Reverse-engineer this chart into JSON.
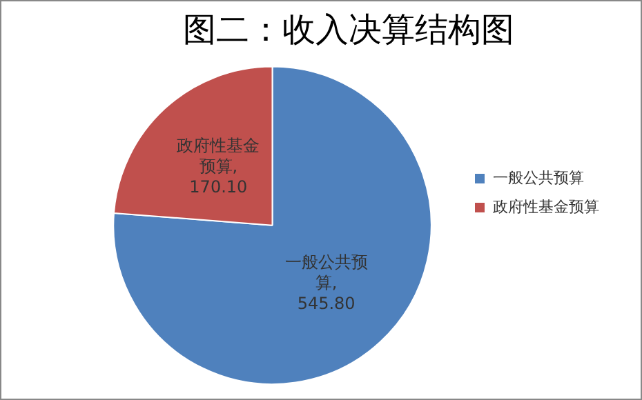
{
  "chart_data": {
    "type": "pie",
    "title": "图二：收入决算结构图",
    "categories": [
      "一般公共预算",
      "政府性基金预算"
    ],
    "values": [
      545.8,
      170.1
    ],
    "value_labels": [
      "一般公共预算,\n545.80",
      "政府性基金预算,\n170.10"
    ],
    "colors": [
      "#4f81bd",
      "#c0504d"
    ],
    "legend": "right"
  }
}
